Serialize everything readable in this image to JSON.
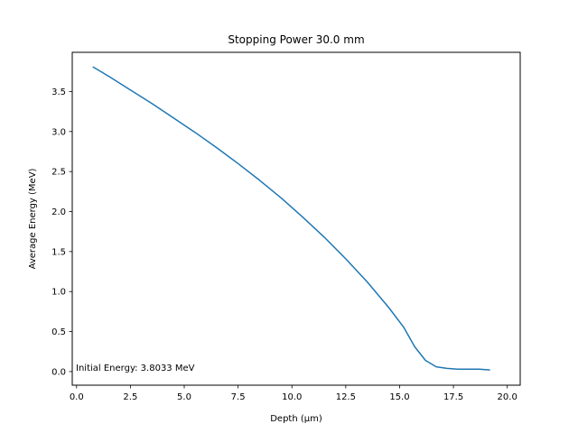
{
  "chart_data": {
    "type": "line",
    "title": "Stopping Power 30.0 mm",
    "xlabel": "Depth (μm)",
    "ylabel": "Average Energy (MeV)",
    "xlim": [
      -0.2,
      20.6
    ],
    "ylim": [
      -0.17,
      3.99
    ],
    "xticks": [
      0.0,
      2.5,
      5.0,
      7.5,
      10.0,
      12.5,
      15.0,
      17.5,
      20.0
    ],
    "xtick_labels": [
      "0.0",
      "2.5",
      "5.0",
      "7.5",
      "10.0",
      "12.5",
      "15.0",
      "17.5",
      "20.0"
    ],
    "yticks": [
      0.0,
      0.5,
      1.0,
      1.5,
      2.0,
      2.5,
      3.0,
      3.5
    ],
    "ytick_labels": [
      "0.0",
      "0.5",
      "1.0",
      "1.5",
      "2.0",
      "2.5",
      "3.0",
      "3.5"
    ],
    "grid": false,
    "series": [
      {
        "color": "#1f77b4",
        "x": [
          0.75,
          1.5,
          2.5,
          3.5,
          4.5,
          5.5,
          6.5,
          7.5,
          8.5,
          9.5,
          10.5,
          11.5,
          12.5,
          13.5,
          14.5,
          15.2,
          15.7,
          16.2,
          16.7,
          17.2,
          17.7,
          18.2,
          18.7,
          19.2
        ],
        "y": [
          3.81,
          3.69,
          3.52,
          3.35,
          3.17,
          2.99,
          2.8,
          2.6,
          2.39,
          2.17,
          1.93,
          1.68,
          1.41,
          1.12,
          0.8,
          0.55,
          0.31,
          0.14,
          0.06,
          0.04,
          0.03,
          0.03,
          0.03,
          0.02
        ]
      }
    ],
    "annotation": "Initial Energy: 3.8033 MeV"
  }
}
